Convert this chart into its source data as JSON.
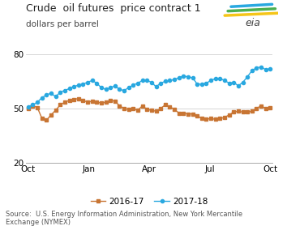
{
  "title": "Crude  oil futures  price contract 1",
  "subtitle": "dollars per barrel",
  "source": "Source:  U.S. Energy Information Administration, New York Mercantile\nExchange (NYMEX)",
  "ylim": [
    20,
    80
  ],
  "yticks": [
    20,
    50,
    80
  ],
  "xlabel_ticks": [
    "Oct",
    "Jan",
    "Apr",
    "Jul",
    "Oct"
  ],
  "legend_labels": [
    "2016-17",
    "2017-18"
  ],
  "color_2016": "#c87533",
  "color_2017": "#29a8e0",
  "series_2016": [
    50.0,
    51.5,
    50.5,
    44.5,
    43.5,
    46.5,
    49.0,
    52.0,
    53.5,
    54.5,
    55.0,
    55.5,
    54.5,
    53.5,
    54.0,
    53.5,
    53.0,
    53.5,
    54.5,
    54.0,
    51.5,
    50.0,
    49.5,
    50.0,
    49.0,
    51.5,
    49.5,
    49.0,
    48.5,
    50.0,
    52.0,
    51.0,
    49.5,
    47.5,
    47.5,
    47.0,
    47.0,
    46.0,
    44.5,
    44.0,
    44.5,
    44.0,
    44.5,
    45.0,
    46.5,
    48.0,
    48.5,
    48.0,
    48.0,
    48.5,
    50.0,
    51.5,
    50.0,
    50.5
  ],
  "series_2017": [
    51.0,
    52.0,
    53.5,
    56.0,
    57.5,
    58.5,
    56.5,
    59.0,
    60.0,
    61.0,
    62.0,
    63.0,
    63.5,
    64.5,
    65.5,
    64.0,
    61.5,
    60.5,
    61.5,
    62.5,
    60.5,
    60.0,
    61.5,
    63.0,
    64.0,
    65.5,
    65.5,
    64.5,
    62.0,
    64.0,
    65.0,
    65.5,
    66.0,
    67.0,
    68.0,
    67.5,
    67.0,
    63.5,
    63.5,
    64.0,
    65.5,
    66.5,
    66.5,
    65.5,
    64.0,
    64.5,
    62.5,
    64.5,
    67.5,
    71.0,
    72.5,
    73.0,
    71.5,
    72.0
  ],
  "background_color": "#ffffff",
  "grid_color": "#d0d0d0",
  "marker_size": 3.0,
  "linewidth": 1.0,
  "tick_fontsize": 7.5,
  "title_fontsize": 9.0,
  "subtitle_fontsize": 7.5,
  "source_fontsize": 6.0,
  "legend_fontsize": 7.5
}
